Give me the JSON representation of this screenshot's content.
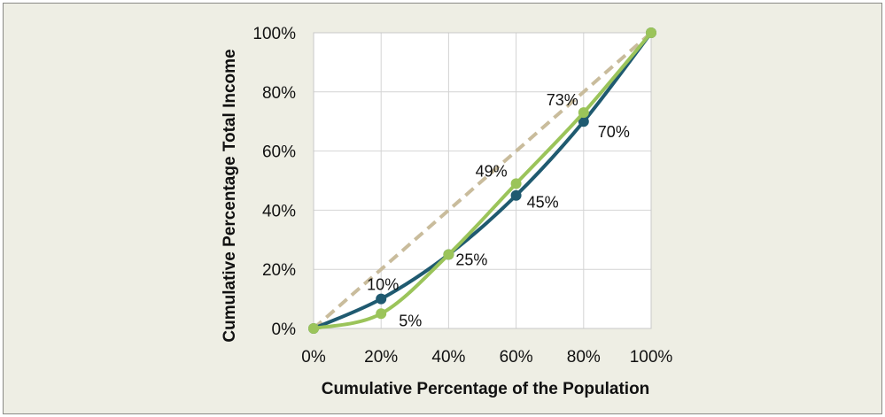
{
  "chart_data": {
    "type": "line",
    "title": "",
    "xlabel": "Cumulative Percentage of the Population",
    "ylabel": "Cumulative Percentage Total Income",
    "xlim": [
      0,
      100
    ],
    "ylim": [
      0,
      100
    ],
    "x_ticks": [
      "0%",
      "20%",
      "40%",
      "60%",
      "80%",
      "100%"
    ],
    "y_ticks": [
      "0%",
      "20%",
      "40%",
      "60%",
      "80%",
      "100%"
    ],
    "grid": true,
    "legend": "none",
    "x": [
      0,
      20,
      40,
      60,
      80,
      100
    ],
    "series": [
      {
        "name": "Equality line",
        "style": "dashed",
        "color": "#c9bc9c",
        "points": [
          [
            0,
            0
          ],
          [
            100,
            100
          ]
        ]
      },
      {
        "name": "Lorenz curve (dark)",
        "color": "#1f5a70",
        "values": [
          0,
          10,
          25,
          45,
          70,
          100
        ],
        "labels": [
          "",
          "10%",
          "",
          "45%",
          "70%",
          ""
        ]
      },
      {
        "name": "Lorenz curve (green)",
        "color": "#9bc45a",
        "values": [
          0,
          5,
          25,
          49,
          73,
          100
        ],
        "labels": [
          "",
          "5%",
          "25%",
          "49%",
          "73%",
          ""
        ]
      }
    ]
  }
}
